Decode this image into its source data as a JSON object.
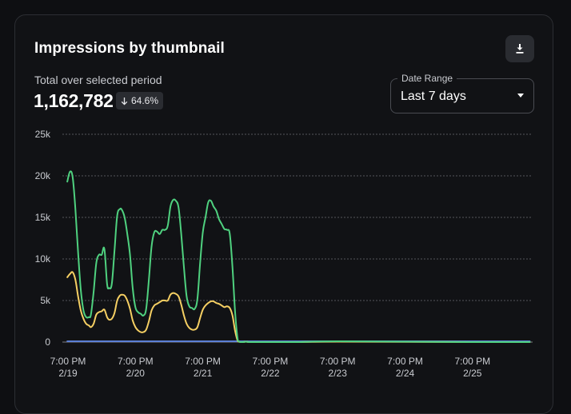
{
  "card": {
    "title": "Impressions by thumbnail",
    "download_icon": "download-icon",
    "subtitle": "Total over selected period",
    "total": "1,162,782",
    "delta": {
      "icon": "arrow-down-icon",
      "value": "64.6%"
    },
    "date_range": {
      "label": "Date Range",
      "value": "Last 7 days",
      "icon": "caret-down-icon"
    }
  },
  "colors": {
    "background": "#111215",
    "green_series": "#4fd17f",
    "yellow_series": "#f5cf63",
    "blue_series": "#5b7fd6",
    "grid": "#55575c",
    "text_muted": "#c9cbd0"
  },
  "chart_data": {
    "type": "line",
    "ylim": [
      0,
      25000
    ],
    "yticks": [
      0,
      5000,
      10000,
      15000,
      20000,
      25000
    ],
    "ytick_labels": [
      "0",
      "5k",
      "10k",
      "15k",
      "20k",
      "25k"
    ],
    "xticks": [
      0,
      1,
      2,
      3,
      4,
      5,
      6
    ],
    "xtick_labels": [
      [
        "7:00 PM",
        "2/19"
      ],
      [
        "7:00 PM",
        "2/20"
      ],
      [
        "7:00 PM",
        "2/21"
      ],
      [
        "7:00 PM",
        "2/22"
      ],
      [
        "7:00 PM",
        "2/23"
      ],
      [
        "7:00 PM",
        "2/24"
      ],
      [
        "7:00 PM",
        "2/25"
      ]
    ],
    "xlim": [
      -0.05,
      6.9
    ],
    "grid": "horizontal-dashed",
    "series": [
      {
        "color": "#4fd17f",
        "x": [
          -0.01,
          0.03,
          0.07,
          0.11,
          0.15,
          0.19,
          0.23,
          0.27,
          0.31,
          0.34,
          0.38,
          0.42,
          0.46,
          0.5,
          0.54,
          0.58,
          0.61,
          0.65,
          0.69,
          0.73,
          0.77,
          0.8,
          0.84,
          0.88,
          0.92,
          0.96,
          1.0,
          1.04,
          1.08,
          1.12,
          1.16,
          1.2,
          1.24,
          1.28,
          1.32,
          1.36,
          1.4,
          1.44,
          1.48,
          1.52,
          1.56,
          1.6,
          1.64,
          1.68,
          1.72,
          1.76,
          1.8,
          1.84,
          1.88,
          1.92,
          1.96,
          2.0,
          2.04,
          2.08,
          2.12,
          2.16,
          2.2,
          2.24,
          2.28,
          2.32,
          2.36,
          2.4,
          2.44,
          2.48,
          2.52,
          2.56,
          2.6,
          2.64,
          2.68,
          2.72,
          2.76,
          2.8,
          2.84,
          2.88,
          2.92,
          2.96,
          3.0,
          3.04,
          3.08,
          3.12,
          3.16,
          3.2,
          3.24,
          3.3,
          3.4,
          4.0,
          5.0,
          6.0,
          6.85
        ],
        "values": [
          19300,
          20500,
          19800,
          16000,
          10800,
          6300,
          3800,
          3000,
          3000,
          3300,
          6000,
          9500,
          10500,
          10500,
          11200,
          7000,
          6500,
          7000,
          11000,
          15200,
          16000,
          15900,
          15000,
          13000,
          10500,
          6500,
          4200,
          3600,
          3400,
          3200,
          4000,
          7500,
          11500,
          13200,
          13300,
          13000,
          13500,
          13500,
          14000,
          16300,
          17100,
          17000,
          16200,
          13000,
          9000,
          5500,
          4300,
          4100,
          4000,
          5200,
          9500,
          13200,
          15000,
          16800,
          17000,
          16300,
          15800,
          14800,
          14200,
          13600,
          13500,
          13000,
          9000,
          3500,
          200,
          0,
          0,
          50,
          0,
          0,
          0,
          0,
          0,
          0,
          0,
          0,
          0,
          0,
          0,
          0,
          0,
          0,
          0,
          0,
          0,
          100,
          50,
          0,
          0
        ]
      },
      {
        "color": "#f5cf63",
        "x": [
          -0.01,
          0.03,
          0.07,
          0.11,
          0.15,
          0.19,
          0.23,
          0.27,
          0.31,
          0.34,
          0.38,
          0.42,
          0.46,
          0.5,
          0.54,
          0.58,
          0.61,
          0.65,
          0.69,
          0.73,
          0.77,
          0.8,
          0.84,
          0.88,
          0.92,
          0.96,
          1.0,
          1.04,
          1.08,
          1.12,
          1.16,
          1.2,
          1.24,
          1.28,
          1.32,
          1.36,
          1.4,
          1.44,
          1.48,
          1.52,
          1.56,
          1.6,
          1.64,
          1.68,
          1.72,
          1.76,
          1.8,
          1.84,
          1.88,
          1.92,
          1.96,
          2.0,
          2.04,
          2.08,
          2.12,
          2.16,
          2.2,
          2.24,
          2.28,
          2.32,
          2.36,
          2.4,
          2.44,
          2.48,
          2.52,
          2.56,
          2.6,
          2.64,
          2.68,
          2.72,
          2.76,
          2.8,
          2.84,
          2.88,
          2.92,
          2.96,
          3.0,
          3.04,
          3.08,
          3.12,
          3.16,
          3.2,
          3.24,
          3.3,
          3.4,
          4.0,
          5.0,
          6.0,
          6.85
        ],
        "values": [
          7800,
          8200,
          8400,
          7500,
          5500,
          3800,
          2800,
          2200,
          2000,
          1800,
          2200,
          3300,
          3600,
          3700,
          3900,
          3000,
          2700,
          2800,
          3500,
          5000,
          5600,
          5700,
          5600,
          5000,
          4000,
          2600,
          1800,
          1400,
          1200,
          1200,
          1500,
          2500,
          3800,
          4400,
          4600,
          4800,
          5000,
          5000,
          5000,
          5700,
          5900,
          5800,
          5500,
          4500,
          3200,
          2200,
          1700,
          1500,
          1500,
          1800,
          2900,
          3900,
          4400,
          4700,
          4900,
          4900,
          4700,
          4600,
          4400,
          4200,
          4300,
          4100,
          3200,
          1300,
          100,
          0,
          0,
          50,
          0,
          0,
          0,
          0,
          0,
          0,
          0,
          0,
          0,
          0,
          0,
          0,
          0,
          0,
          0,
          0,
          0,
          50,
          30,
          0,
          0
        ]
      },
      {
        "color": "#5b7fd6",
        "x": [
          -0.01,
          6.85
        ],
        "values": [
          100,
          100
        ]
      }
    ]
  }
}
